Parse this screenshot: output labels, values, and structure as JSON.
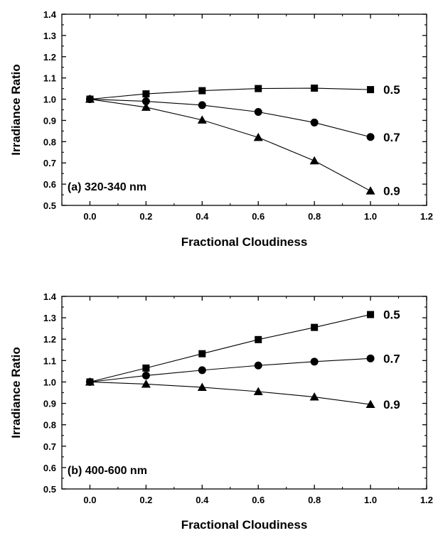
{
  "chart_data": [
    {
      "type": "line",
      "panel_label": "(a)  320-340 nm",
      "xlabel": "Fractional Cloudiness",
      "ylabel": "Irradiance Ratio",
      "xlim": [
        -0.1,
        1.2
      ],
      "ylim": [
        0.5,
        1.4
      ],
      "x_ticks": [
        "0.0",
        "0.2",
        "0.4",
        "0.6",
        "0.8",
        "1.0",
        "1.2"
      ],
      "y_ticks": [
        "0.5",
        "0.6",
        "0.7",
        "0.8",
        "0.9",
        "1.0",
        "1.1",
        "1.2",
        "1.3",
        "1.4"
      ],
      "x": [
        0.0,
        0.2,
        0.4,
        0.6,
        0.8,
        1.0
      ],
      "grid": false,
      "series": [
        {
          "name": "0.5",
          "marker": "square",
          "values": [
            1.0,
            1.025,
            1.04,
            1.05,
            1.052,
            1.045
          ]
        },
        {
          "name": "0.7",
          "marker": "circle",
          "values": [
            1.0,
            0.99,
            0.972,
            0.94,
            0.89,
            0.822
          ]
        },
        {
          "name": "0.9",
          "marker": "triangle",
          "values": [
            1.0,
            0.962,
            0.902,
            0.82,
            0.71,
            0.568
          ]
        }
      ]
    },
    {
      "type": "line",
      "panel_label": "(b)  400-600 nm",
      "xlabel": "Fractional Cloudiness",
      "ylabel": "Irradiance Ratio",
      "xlim": [
        -0.1,
        1.2
      ],
      "ylim": [
        0.5,
        1.4
      ],
      "x_ticks": [
        "0.0",
        "0.2",
        "0.4",
        "0.6",
        "0.8",
        "1.0",
        "1.2"
      ],
      "y_ticks": [
        "0.5",
        "0.6",
        "0.7",
        "0.8",
        "0.9",
        "1.0",
        "1.1",
        "1.2",
        "1.3",
        "1.4"
      ],
      "x": [
        0.0,
        0.2,
        0.4,
        0.6,
        0.8,
        1.0
      ],
      "grid": false,
      "series": [
        {
          "name": "0.5",
          "marker": "square",
          "values": [
            1.0,
            1.065,
            1.132,
            1.198,
            1.255,
            1.315
          ]
        },
        {
          "name": "0.7",
          "marker": "circle",
          "values": [
            1.0,
            1.03,
            1.055,
            1.077,
            1.095,
            1.11
          ]
        },
        {
          "name": "0.9",
          "marker": "triangle",
          "values": [
            1.0,
            0.99,
            0.975,
            0.955,
            0.93,
            0.895
          ]
        }
      ]
    }
  ]
}
